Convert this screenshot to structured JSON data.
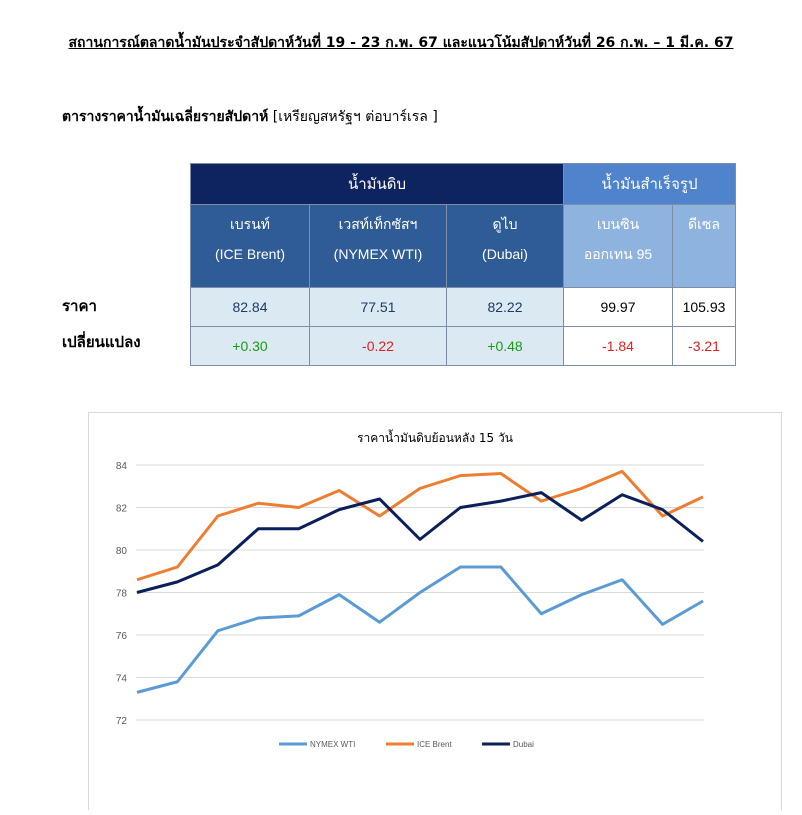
{
  "headline": "สถานการณ์ตลาดน้ำมันประจำสัปดาห์วันที่ 19 - 23 ก.พ. 67 และแนวโน้มสัปดาห์วันที่ 26 ก.พ. – 1 มี.ค. 67",
  "table_section": {
    "title_bold": "ตารางราคาน้ำมันเฉลี่ยรายสัปดาห์",
    "title_unit": " [เหรียญสหรัฐฯ ต่อบาร์เรล ]",
    "group_crude": "น้ำมันดิบ",
    "group_refined": "น้ำมันสำเร็จรูป",
    "columns": [
      {
        "line1": "เบรนท์",
        "line2": "(ICE Brent)"
      },
      {
        "line1": "เวสท์เท็กซัสฯ",
        "line2": "(NYMEX WTI)"
      },
      {
        "line1": "ดูไบ",
        "line2": "(Dubai)"
      },
      {
        "line1": "เบนซิน",
        "line2": "ออกเทน  95"
      },
      {
        "line1": "ดีเซล",
        "line2": ""
      }
    ],
    "row_labels": {
      "price": "ราคา",
      "change": "เปลี่ยนแปลง"
    },
    "prices": [
      "82.84",
      "77.51",
      "82.22",
      "99.97",
      "105.93"
    ],
    "changes": [
      "+0.30",
      "-0.22",
      "+0.48",
      "-1.84",
      "-3.21"
    ],
    "colors": {
      "crude_header": "#0e2460",
      "refined_header": "#4f83cc",
      "up": "#1a9a1a",
      "down": "#e02020"
    }
  },
  "chart_data": {
    "type": "line",
    "title": "ราคาน้ำมันดิบย้อนหลัง 15 วัน",
    "ylim": [
      72,
      84
    ],
    "yticks": [
      "84",
      "82",
      "80",
      "78",
      "76",
      "74",
      "72"
    ],
    "grid": true,
    "legend_position": "bottom",
    "x": [
      1,
      2,
      3,
      4,
      5,
      6,
      7,
      8,
      9,
      10,
      11,
      12,
      13,
      14,
      15
    ],
    "series": [
      {
        "name": "NYMEX WTI",
        "color": "#5b9bd5",
        "values": [
          73.3,
          73.8,
          76.2,
          76.8,
          76.9,
          77.9,
          76.6,
          78.0,
          79.2,
          79.2,
          77.0,
          77.9,
          78.6,
          76.5,
          77.6
        ]
      },
      {
        "name": "ICE Brent",
        "color": "#ed7d31",
        "values": [
          78.6,
          79.2,
          81.6,
          82.2,
          82.0,
          82.8,
          81.6,
          82.9,
          83.5,
          83.6,
          82.3,
          82.9,
          83.7,
          81.6,
          82.5
        ]
      },
      {
        "name": "Dubai",
        "color": "#0b1f5a",
        "values": [
          78.0,
          78.5,
          79.3,
          81.0,
          81.0,
          81.9,
          82.4,
          80.5,
          82.0,
          82.3,
          82.7,
          81.4,
          82.6,
          81.9,
          80.4
        ]
      }
    ]
  }
}
